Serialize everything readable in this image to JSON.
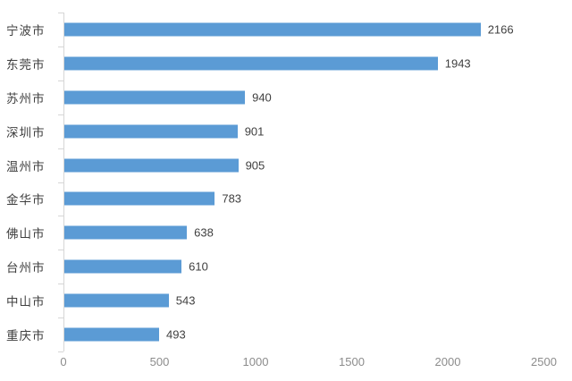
{
  "chart_data": {
    "type": "bar",
    "orientation": "horizontal",
    "title": "",
    "xlabel": "",
    "ylabel": "",
    "categories": [
      "宁波市",
      "东莞市",
      "苏州市",
      "深圳市",
      "温州市",
      "金华市",
      "佛山市",
      "台州市",
      "中山市",
      "重庆市"
    ],
    "values": [
      2166,
      1943,
      940,
      901,
      905,
      783,
      638,
      610,
      543,
      493
    ],
    "value_labels": [
      "2166",
      "1943",
      "940",
      "901",
      "905",
      "783",
      "638",
      "610",
      "543",
      "493"
    ],
    "xlim": [
      0,
      2500
    ],
    "x_ticks": [
      0,
      500,
      1000,
      1500,
      2000,
      2500
    ],
    "x_tick_labels": [
      "0",
      "500",
      "1000",
      "1500",
      "2000",
      "2500"
    ],
    "grid": false,
    "legend": "none",
    "value_labels_shown": true,
    "colors": {
      "bar": "#5b9bd5",
      "axis_line": "#d6d6d6",
      "category_label": "#404040",
      "value_label": "#404040",
      "x_tick_label": "#8c8c8c",
      "background": "#ffffff"
    }
  }
}
